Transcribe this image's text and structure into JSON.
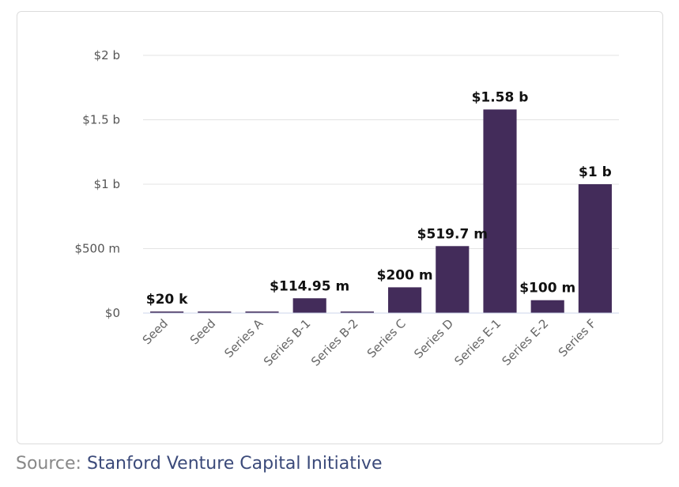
{
  "chart_data": {
    "type": "bar",
    "categories": [
      "Seed",
      "Seed",
      "Series A",
      "Series B-1",
      "Series B-2",
      "Series C",
      "Series D",
      "Series E-1",
      "Series E-2",
      "Series F"
    ],
    "values": [
      20000,
      0,
      0,
      114950000,
      0,
      200000000,
      519700000,
      1580000000,
      100000000,
      1000000000
    ],
    "data_labels": [
      "$20 k",
      "",
      "",
      "$114.95 m",
      "",
      "$200 m",
      "$519.7 m",
      "$1.58 b",
      "$100 m",
      "$1 b"
    ],
    "ylim": [
      0,
      2000000000
    ],
    "y_ticks": [
      0,
      500000000,
      1000000000,
      1500000000,
      2000000000
    ],
    "y_tick_labels": [
      "$0",
      "$500 m",
      "$1 b",
      "$1.5 b",
      "$2 b"
    ],
    "bar_color": "#432c5a",
    "grid": true,
    "legend": "none"
  },
  "source": {
    "label": "Source:",
    "link_text": "Stanford Venture Capital Initiative"
  }
}
